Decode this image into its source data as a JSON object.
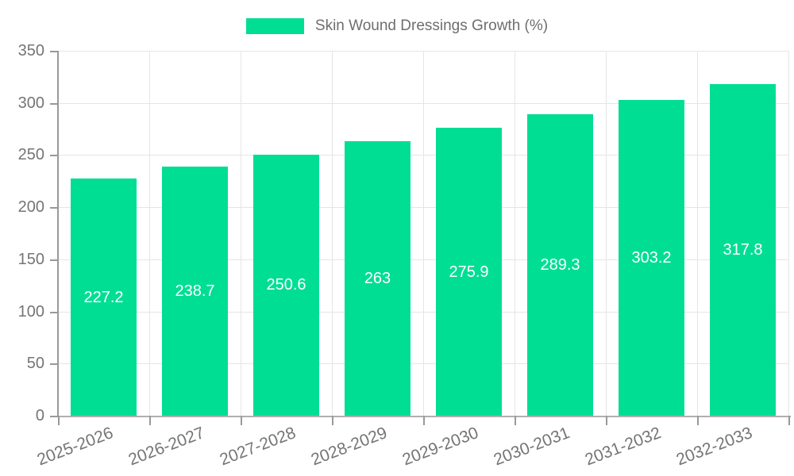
{
  "legend": {
    "label": "Skin Wound Dressings Growth (%)"
  },
  "colors": {
    "bar": "#00DE94",
    "grid": "#e5e5e5",
    "axis": "#999999",
    "tick_text": "#757575",
    "legend_text": "#6e6e6e",
    "bar_label_text": "#ffffff",
    "background": "#ffffff"
  },
  "chart_data": {
    "type": "bar",
    "title": "Skin Wound Dressings Growth (%)",
    "categories": [
      "2025-2026",
      "2026-2027",
      "2027-2028",
      "2028-2029",
      "2029-2030",
      "2030-2031",
      "2031-2032",
      "2032-2033"
    ],
    "values": [
      227.2,
      238.7,
      250.6,
      263,
      275.9,
      289.3,
      303.2,
      317.8
    ],
    "value_labels": [
      "227.2",
      "238.7",
      "250.6",
      "263",
      "275.9",
      "289.3",
      "303.2",
      "317.8"
    ],
    "xlabel": "",
    "ylabel": "",
    "ylim": [
      0,
      350
    ],
    "yticks": [
      0,
      50,
      100,
      150,
      200,
      250,
      300,
      350
    ],
    "grid": true,
    "legend_position": "top-center",
    "series_name": "Skin Wound Dressings Growth (%)",
    "value_label_position": "inside-center",
    "x_label_rotation_deg": -21
  }
}
